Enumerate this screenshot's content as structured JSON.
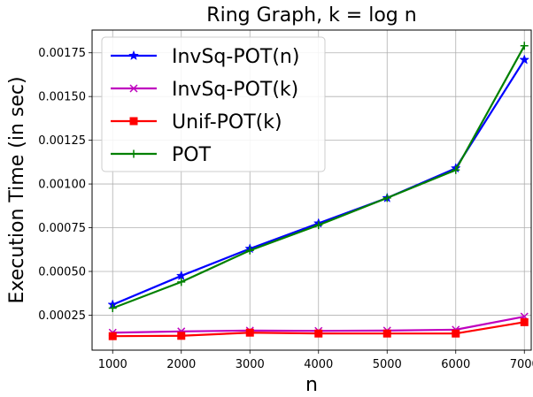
{
  "chart_data": {
    "type": "line",
    "title": "Ring Graph, k = log n",
    "xlabel": "n",
    "ylabel": "Execution Time (in sec)",
    "x": [
      1000,
      2000,
      3000,
      4000,
      5000,
      6000,
      7000
    ],
    "xticks": [
      "1000",
      "2000",
      "3000",
      "4000",
      "5000",
      "6000",
      "7000"
    ],
    "yticks": [
      "0.00025",
      "0.00050",
      "0.00075",
      "0.00100",
      "0.00125",
      "0.00150",
      "0.00175"
    ],
    "ytick_values": [
      0.00025,
      0.0005,
      0.00075,
      0.001,
      0.00125,
      0.0015,
      0.00175
    ],
    "xlim": [
      700,
      7100
    ],
    "ylim": [
      5e-05,
      0.00188
    ],
    "grid": true,
    "legend_position": "top-left",
    "series": [
      {
        "name": "InvSq-POT(n)",
        "color": "#0000ff",
        "marker": "star",
        "values": [
          0.00031,
          0.000475,
          0.00063,
          0.000775,
          0.00092,
          0.00109,
          0.00171
        ]
      },
      {
        "name": "InvSq-POT(k)",
        "color": "#bf00bf",
        "marker": "x",
        "values": [
          0.00015,
          0.000157,
          0.000162,
          0.00016,
          0.000162,
          0.000167,
          0.000242
        ]
      },
      {
        "name": "Unif-POT(k)",
        "color": "#ff0000",
        "marker": "square",
        "values": [
          0.00013,
          0.000132,
          0.00015,
          0.000145,
          0.000145,
          0.000145,
          0.00021
        ]
      },
      {
        "name": "POT",
        "color": "#008000",
        "marker": "plus",
        "values": [
          0.00029,
          0.00044,
          0.00062,
          0.000765,
          0.00092,
          0.00108,
          0.00179
        ]
      }
    ]
  }
}
